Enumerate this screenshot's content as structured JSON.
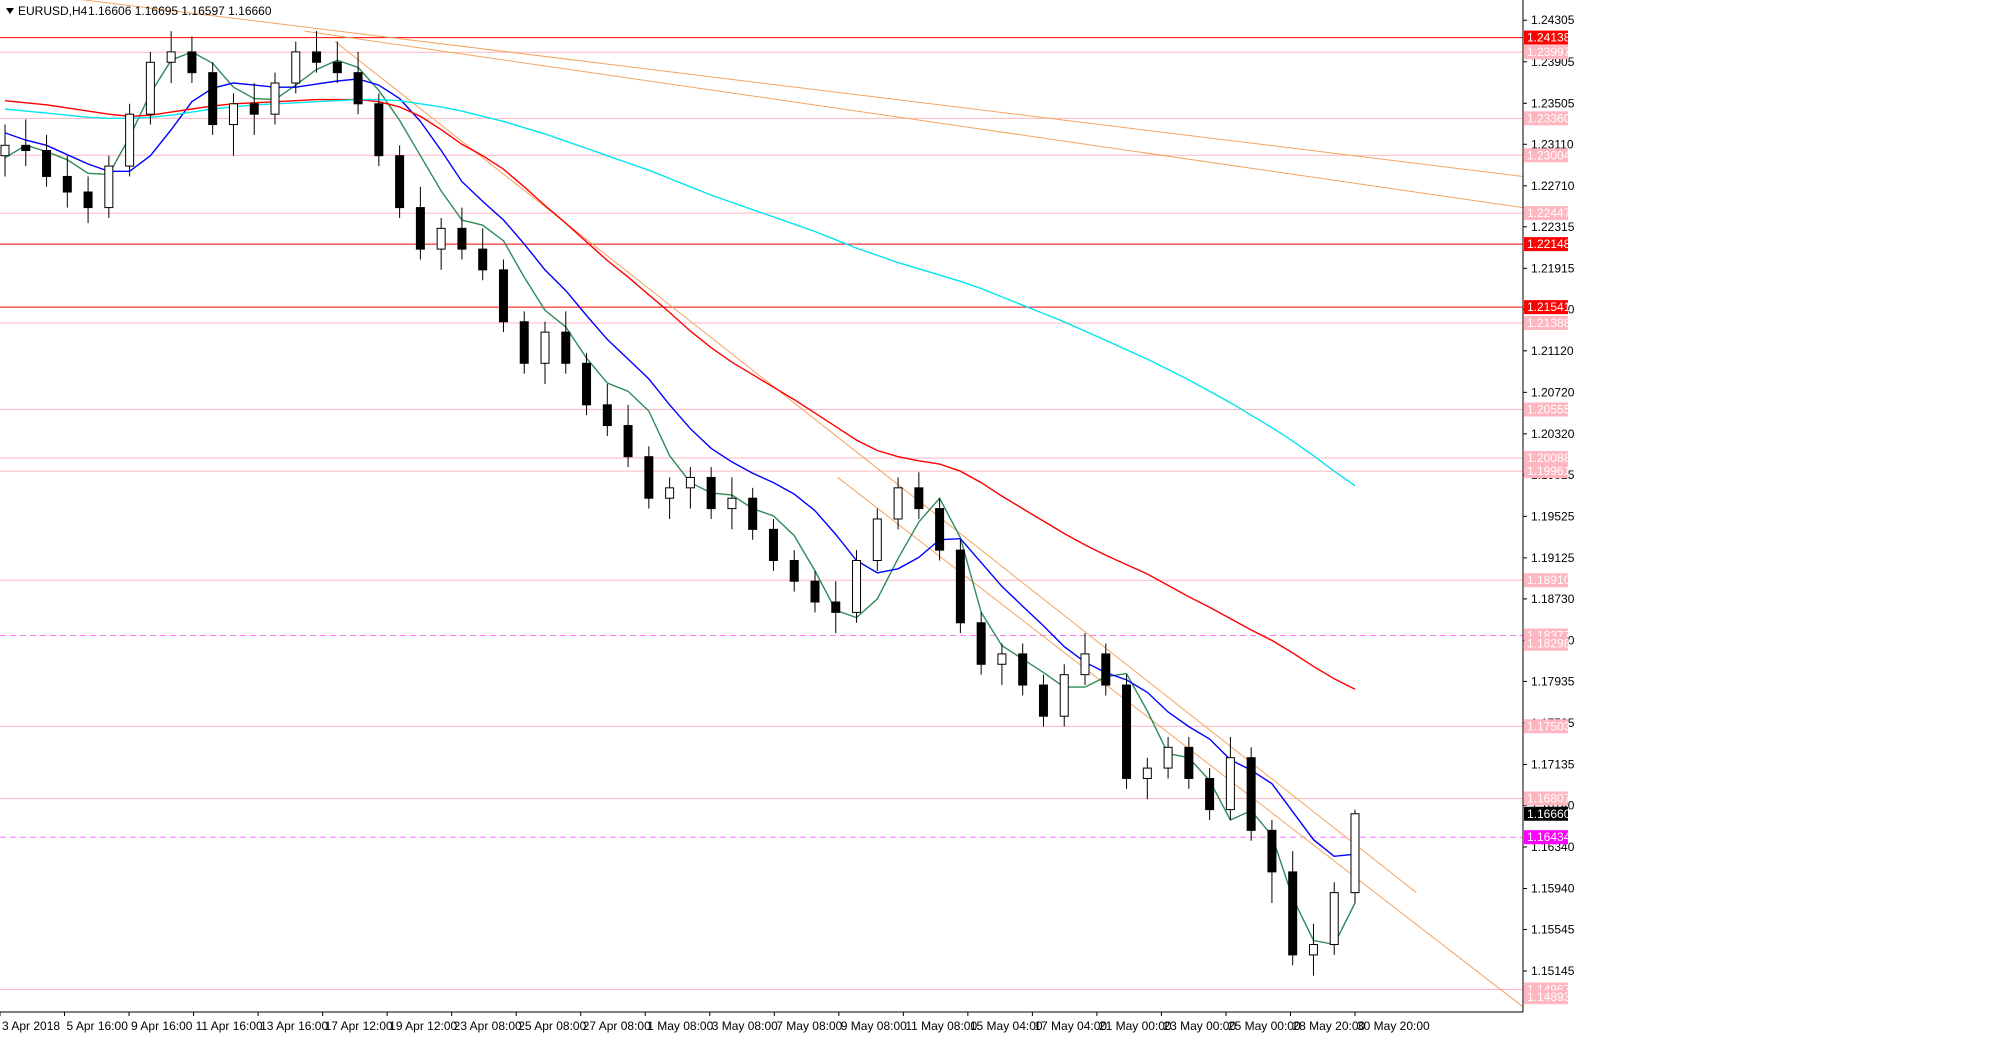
{
  "header": {
    "symbol": "EURUSD,H4",
    "quote": "1.16606 1.16695 1.16597 1.16660"
  },
  "colors": {
    "background": "#ffffff",
    "candle_bull": "#ffffff",
    "candle_bear": "#000000",
    "ema_fast": "#2e8b57",
    "ema_mid": "#0000ff",
    "ema_slow": "#ff0000",
    "ema_long": "#00e5ee",
    "trendline": "#f4a460",
    "level_line": "#ff0000",
    "level_faint": "#ffb6c1",
    "dashed_magenta": "#ff77ff",
    "tag_red": "#ff0000",
    "tag_pink": "#ffb6c1",
    "tag_magenta": "#ff00ff",
    "tag_black": "#000000"
  },
  "chart_data": {
    "type": "candlestick",
    "title": "EURUSD,H4",
    "ylim": [
      1.1475,
      1.245
    ],
    "price_ticks": [
      "1.24305",
      "1.23905",
      "1.23505",
      "1.23110",
      "1.22710",
      "1.22315",
      "1.21915",
      "1.21520",
      "1.21120",
      "1.20720",
      "1.20320",
      "1.19925",
      "1.19525",
      "1.19125",
      "1.18730",
      "1.18330",
      "1.17935",
      "1.17535",
      "1.17135",
      "1.16740",
      "1.16340",
      "1.15940",
      "1.15545",
      "1.15145"
    ],
    "time_labels": [
      "3 Apr 2018",
      "5 Apr 16:00",
      "9 Apr 16:00",
      "11 Apr 16:00",
      "13 Apr 16:00",
      "17 Apr 12:00",
      "19 Apr 12:00",
      "23 Apr 08:00",
      "25 Apr 08:00",
      "27 Apr 08:00",
      "1 May 08:00",
      "3 May 08:00",
      "7 May 08:00",
      "9 May 08:00",
      "11 May 08:00",
      "15 May 04:00",
      "17 May 04:00",
      "21 May 00:00",
      "23 May 00:00",
      "25 May 00:00",
      "28 May 20:00",
      "30 May 20:00"
    ],
    "price_tags": [
      {
        "value": 1.24138,
        "text": "1.24138",
        "kind": "red"
      },
      {
        "value": 1.23997,
        "text": "1.23997",
        "kind": "pink"
      },
      {
        "value": 1.2336,
        "text": "1.23360",
        "kind": "pink"
      },
      {
        "value": 1.23004,
        "text": "1.23004",
        "kind": "pink"
      },
      {
        "value": 1.22447,
        "text": "1.22447",
        "kind": "pink"
      },
      {
        "value": 1.22148,
        "text": "1.22148",
        "kind": "red"
      },
      {
        "value": 1.21541,
        "text": "1.21541",
        "kind": "red"
      },
      {
        "value": 1.21388,
        "text": "1.21388",
        "kind": "pink"
      },
      {
        "value": 1.20555,
        "text": "1.20555",
        "kind": "pink"
      },
      {
        "value": 1.20088,
        "text": "1.20088",
        "kind": "pink"
      },
      {
        "value": 1.19961,
        "text": "1.19961",
        "kind": "pink"
      },
      {
        "value": 1.1891,
        "text": "1.18910",
        "kind": "pink"
      },
      {
        "value": 1.18377,
        "text": "1.18377",
        "kind": "pink"
      },
      {
        "value": 1.18298,
        "text": "1.18298",
        "kind": "pink"
      },
      {
        "value": 1.17503,
        "text": "1.17503",
        "kind": "pink"
      },
      {
        "value": 1.16807,
        "text": "1.16807",
        "kind": "pink"
      },
      {
        "value": 1.1666,
        "text": "1.16660",
        "kind": "black"
      },
      {
        "value": 1.16434,
        "text": "1.16434",
        "kind": "magenta"
      },
      {
        "value": 1.14967,
        "text": "1.14967",
        "kind": "pink"
      },
      {
        "value": 1.14893,
        "text": "1.14893",
        "kind": "pink"
      }
    ],
    "horizontal_levels": [
      {
        "value": 1.24138,
        "style": "red"
      },
      {
        "value": 1.22148,
        "style": "red"
      },
      {
        "value": 1.21541,
        "style": "red"
      },
      {
        "value": 1.23997,
        "style": "faint"
      },
      {
        "value": 1.2336,
        "style": "faint"
      },
      {
        "value": 1.23004,
        "style": "faint"
      },
      {
        "value": 1.22447,
        "style": "faint"
      },
      {
        "value": 1.21388,
        "style": "faint"
      },
      {
        "value": 1.20555,
        "style": "faint"
      },
      {
        "value": 1.20088,
        "style": "faint"
      },
      {
        "value": 1.19961,
        "style": "faint"
      },
      {
        "value": 1.1891,
        "style": "faint"
      },
      {
        "value": 1.18377,
        "style": "dashed"
      },
      {
        "value": 1.17503,
        "style": "faint"
      },
      {
        "value": 1.16807,
        "style": "faint"
      },
      {
        "value": 1.16434,
        "style": "dashed"
      },
      {
        "value": 1.14967,
        "style": "faint"
      }
    ],
    "series": [
      {
        "key": "ema_fast",
        "color": "ema_fast",
        "values": [
          1.2298,
          1.231,
          1.2304,
          1.2296,
          1.2283,
          1.2282,
          1.2318,
          1.236,
          1.2392,
          1.24,
          1.2389,
          1.2366,
          1.2355,
          1.2354,
          1.2368,
          1.2383,
          1.2392,
          1.2385,
          1.2363,
          1.2334,
          1.23,
          1.2266,
          1.2238,
          1.2233,
          1.2218,
          1.2183,
          1.2151,
          1.2135,
          1.2105,
          1.2081,
          1.2073,
          1.2054,
          1.2011,
          1.1985,
          1.1975,
          1.1973,
          1.196,
          1.1953,
          1.1934,
          1.19,
          1.1862,
          1.1855,
          1.1873,
          1.1912,
          1.1947,
          1.197,
          1.1932,
          1.186,
          1.1828,
          1.1815,
          1.1802,
          1.1788,
          1.1788,
          1.1798,
          1.1801,
          1.1765,
          1.1724,
          1.172,
          1.1698,
          1.166,
          1.1669,
          1.1645,
          1.1585,
          1.1544,
          1.154,
          1.158
        ]
      },
      {
        "key": "ema_mid",
        "color": "ema_mid",
        "values": [
          1.2322,
          1.2315,
          1.231,
          1.2301,
          1.2292,
          1.2285,
          1.2285,
          1.23,
          1.2325,
          1.2352,
          1.2365,
          1.237,
          1.2368,
          1.2366,
          1.2366,
          1.2369,
          1.2372,
          1.2374,
          1.2368,
          1.2355,
          1.2333,
          1.2305,
          1.2275,
          1.2256,
          1.2238,
          1.2215,
          1.219,
          1.217,
          1.2146,
          1.2123,
          1.2104,
          1.2085,
          1.206,
          1.2037,
          1.2018,
          1.2005,
          1.1994,
          1.1985,
          1.1974,
          1.1958,
          1.1935,
          1.191,
          1.1898,
          1.1902,
          1.1913,
          1.193,
          1.1931,
          1.1908,
          1.1885,
          1.1866,
          1.1847,
          1.1827,
          1.1812,
          1.1802,
          1.1795,
          1.1783,
          1.1764,
          1.175,
          1.1738,
          1.1718,
          1.1708,
          1.1695,
          1.1668,
          1.1641,
          1.1625,
          1.1627
        ]
      },
      {
        "key": "ema_slow",
        "color": "ema_slow",
        "values": [
          1.2353,
          1.2351,
          1.2349,
          1.2346,
          1.2343,
          1.234,
          1.2338,
          1.2339,
          1.2342,
          1.2345,
          1.2348,
          1.235,
          1.2351,
          1.2352,
          1.2353,
          1.2354,
          1.2354,
          1.2354,
          1.2352,
          1.2347,
          1.2338,
          1.2325,
          1.2311,
          1.23,
          1.2287,
          1.227,
          1.2252,
          1.2235,
          1.2217,
          1.2199,
          1.2183,
          1.2166,
          1.2149,
          1.2131,
          1.2115,
          1.2101,
          1.2089,
          1.2077,
          1.2065,
          1.2052,
          1.2039,
          1.2026,
          1.2016,
          1.201,
          1.2006,
          1.2003,
          1.1996,
          1.1985,
          1.1972,
          1.196,
          1.1948,
          1.1936,
          1.1925,
          1.1915,
          1.1906,
          1.1897,
          1.1886,
          1.1875,
          1.1865,
          1.1854,
          1.1843,
          1.1833,
          1.1821,
          1.1808,
          1.1796,
          1.1786
        ]
      },
      {
        "key": "ema_long",
        "color": "ema_long",
        "values": [
          1.2345,
          1.2343,
          1.2341,
          1.2339,
          1.2337,
          1.2336,
          1.2336,
          1.2337,
          1.2339,
          1.2342,
          1.2345,
          1.2347,
          1.2349,
          1.235,
          1.2351,
          1.2352,
          1.2353,
          1.2354,
          1.2354,
          1.2353,
          1.235,
          1.2347,
          1.2343,
          1.2338,
          1.2333,
          1.2327,
          1.2321,
          1.2314,
          1.2307,
          1.23,
          1.2293,
          1.2286,
          1.2278,
          1.227,
          1.2262,
          1.2255,
          1.2248,
          1.2241,
          1.2234,
          1.2227,
          1.2219,
          1.2211,
          1.2204,
          1.2197,
          1.2191,
          1.2185,
          1.2179,
          1.2172,
          1.2164,
          1.2156,
          1.2148,
          1.214,
          1.2131,
          1.2122,
          1.2113,
          1.2104,
          1.2094,
          1.2084,
          1.2073,
          1.2062,
          1.205,
          1.2038,
          1.2025,
          1.2011,
          1.1996,
          1.1982
        ]
      }
    ],
    "candles": [
      [
        1.23,
        1.233,
        1.228,
        1.231
      ],
      [
        1.231,
        1.2335,
        1.229,
        1.2305
      ],
      [
        1.2305,
        1.232,
        1.227,
        1.228
      ],
      [
        1.228,
        1.23,
        1.225,
        1.2265
      ],
      [
        1.2265,
        1.228,
        1.2235,
        1.225
      ],
      [
        1.225,
        1.23,
        1.224,
        1.229
      ],
      [
        1.229,
        1.235,
        1.228,
        1.234
      ],
      [
        1.234,
        1.24,
        1.233,
        1.239
      ],
      [
        1.239,
        1.242,
        1.237,
        1.24
      ],
      [
        1.24,
        1.2415,
        1.237,
        1.238
      ],
      [
        1.238,
        1.239,
        1.232,
        1.233
      ],
      [
        1.233,
        1.236,
        1.23,
        1.235
      ],
      [
        1.235,
        1.237,
        1.232,
        1.234
      ],
      [
        1.234,
        1.238,
        1.233,
        1.237
      ],
      [
        1.237,
        1.241,
        1.236,
        1.24
      ],
      [
        1.24,
        1.242,
        1.238,
        1.239
      ],
      [
        1.239,
        1.241,
        1.237,
        1.238
      ],
      [
        1.238,
        1.24,
        1.234,
        1.235
      ],
      [
        1.235,
        1.236,
        1.229,
        1.23
      ],
      [
        1.23,
        1.231,
        1.224,
        1.225
      ],
      [
        1.225,
        1.227,
        1.22,
        1.221
      ],
      [
        1.221,
        1.224,
        1.219,
        1.223
      ],
      [
        1.223,
        1.225,
        1.22,
        1.221
      ],
      [
        1.221,
        1.223,
        1.218,
        1.219
      ],
      [
        1.219,
        1.22,
        1.213,
        1.214
      ],
      [
        1.214,
        1.215,
        1.209,
        1.21
      ],
      [
        1.21,
        1.214,
        1.208,
        1.213
      ],
      [
        1.213,
        1.215,
        1.209,
        1.21
      ],
      [
        1.21,
        1.211,
        1.205,
        1.206
      ],
      [
        1.206,
        1.208,
        1.203,
        1.204
      ],
      [
        1.204,
        1.206,
        1.2,
        1.201
      ],
      [
        1.201,
        1.202,
        1.196,
        1.197
      ],
      [
        1.197,
        1.199,
        1.195,
        1.198
      ],
      [
        1.198,
        1.2,
        1.196,
        1.199
      ],
      [
        1.199,
        1.2,
        1.195,
        1.196
      ],
      [
        1.196,
        1.199,
        1.194,
        1.197
      ],
      [
        1.197,
        1.198,
        1.193,
        1.194
      ],
      [
        1.194,
        1.195,
        1.19,
        1.191
      ],
      [
        1.191,
        1.192,
        1.188,
        1.189
      ],
      [
        1.189,
        1.19,
        1.186,
        1.187
      ],
      [
        1.187,
        1.189,
        1.184,
        1.186
      ],
      [
        1.186,
        1.192,
        1.185,
        1.191
      ],
      [
        1.191,
        1.196,
        1.19,
        1.195
      ],
      [
        1.195,
        1.199,
        1.194,
        1.198
      ],
      [
        1.198,
        1.1995,
        1.195,
        1.196
      ],
      [
        1.196,
        1.197,
        1.191,
        1.192
      ],
      [
        1.192,
        1.193,
        1.184,
        1.185
      ],
      [
        1.185,
        1.186,
        1.18,
        1.181
      ],
      [
        1.181,
        1.183,
        1.179,
        1.182
      ],
      [
        1.182,
        1.183,
        1.178,
        1.179
      ],
      [
        1.179,
        1.18,
        1.175,
        1.176
      ],
      [
        1.176,
        1.181,
        1.175,
        1.18
      ],
      [
        1.18,
        1.184,
        1.179,
        1.182
      ],
      [
        1.182,
        1.183,
        1.178,
        1.179
      ],
      [
        1.179,
        1.18,
        1.169,
        1.17
      ],
      [
        1.17,
        1.172,
        1.168,
        1.171
      ],
      [
        1.171,
        1.174,
        1.17,
        1.173
      ],
      [
        1.173,
        1.174,
        1.169,
        1.17
      ],
      [
        1.17,
        1.171,
        1.166,
        1.167
      ],
      [
        1.167,
        1.174,
        1.166,
        1.172
      ],
      [
        1.172,
        1.173,
        1.164,
        1.165
      ],
      [
        1.165,
        1.166,
        1.158,
        1.161
      ],
      [
        1.161,
        1.163,
        1.152,
        1.153
      ],
      [
        1.153,
        1.156,
        1.151,
        1.154
      ],
      [
        1.154,
        1.16,
        1.153,
        1.159
      ],
      [
        1.159,
        1.167,
        1.158,
        1.1666
      ]
    ],
    "trendlines": [
      {
        "x1": 0,
        "y1": 1.246,
        "x2": 1.0,
        "y2": 1.228
      },
      {
        "x1": 0.2,
        "y1": 1.242,
        "x2": 1.0,
        "y2": 1.225
      },
      {
        "x1": 0.22,
        "y1": 1.241,
        "x2": 0.93,
        "y2": 1.159
      },
      {
        "x1": 0.55,
        "y1": 1.199,
        "x2": 1.0,
        "y2": 1.148
      }
    ]
  }
}
